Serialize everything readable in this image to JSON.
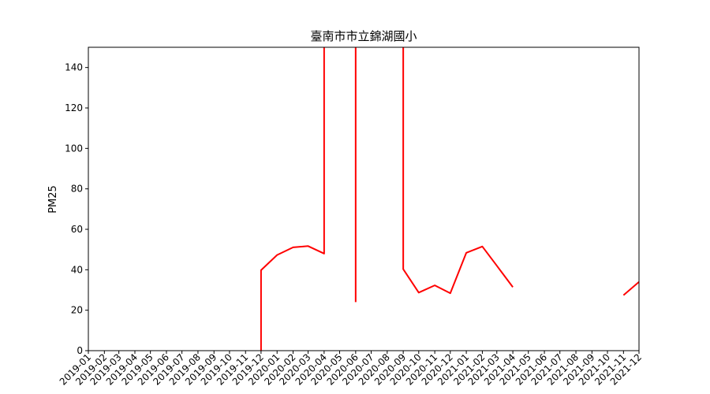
{
  "chart_data": {
    "type": "line",
    "title": "臺南市市立錦湖國小",
    "xlabel": "",
    "ylabel": "PM25",
    "ylim": [
      0,
      150
    ],
    "yticks": [
      0,
      20,
      40,
      60,
      80,
      100,
      120,
      140
    ],
    "grid": false,
    "categories": [
      "2019-01",
      "2019-02",
      "2019-03",
      "2019-04",
      "2019-05",
      "2019-06",
      "2019-07",
      "2019-08",
      "2019-09",
      "2019-10",
      "2019-11",
      "2019-12",
      "2020-01",
      "2020-02",
      "2020-03",
      "2020-04",
      "2020-05",
      "2020-06",
      "2020-07",
      "2020-08",
      "2020-09",
      "2020-10",
      "2020-11",
      "2020-12",
      "2021-01",
      "2021-02",
      "2021-03",
      "2021-04",
      "2021-05",
      "2021-06",
      "2021-07",
      "2021-08",
      "2021-09",
      "2021-10",
      "2021-11",
      "2021-12"
    ],
    "series": [
      {
        "color": "#ff0000",
        "points": [
          {
            "x": "2019-12-01",
            "y": 0
          },
          {
            "x": "2019-12-01",
            "y": 39.8
          },
          {
            "x": "2020-01-01",
            "y": 47.3
          },
          {
            "x": "2020-02-01",
            "y": 51.1
          },
          {
            "x": "2020-03-01",
            "y": 51.7
          },
          {
            "x": "2020-04-01",
            "y": 48.0
          },
          {
            "x": "2020-04-01",
            "y": 155
          },
          null,
          {
            "x": "2020-06-01",
            "y": 155
          },
          {
            "x": "2020-06-01",
            "y": 24.0
          },
          null,
          {
            "x": "2020-09-01",
            "y": 155
          },
          {
            "x": "2020-09-01",
            "y": 40.3
          },
          {
            "x": "2020-10-01",
            "y": 28.7
          },
          {
            "x": "2020-11-01",
            "y": 32.3
          },
          {
            "x": "2020-12-01",
            "y": 28.4
          },
          {
            "x": "2021-01-01",
            "y": 48.4
          },
          {
            "x": "2021-02-01",
            "y": 51.5
          },
          {
            "x": "2021-03-01",
            "y": 42.0
          },
          {
            "x": "2021-04-01",
            "y": 31.4
          },
          null,
          {
            "x": "2021-11-01",
            "y": 27.4
          },
          {
            "x": "2021-12-01",
            "y": 34.0
          }
        ]
      }
    ]
  }
}
